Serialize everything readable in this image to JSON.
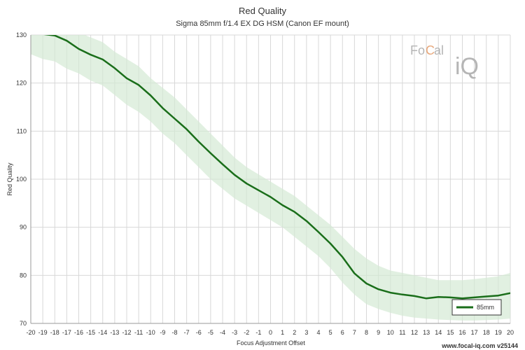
{
  "chart_data": {
    "type": "line",
    "title": "Red Quality",
    "subtitle": "Sigma 85mm f/1.4 EX DG HSM (Canon EF mount)",
    "xlabel": "Focus Adjustment Offset",
    "ylabel": "Red Quality",
    "xlim": [
      -20,
      20
    ],
    "ylim": [
      70,
      130
    ],
    "xticks": [
      -20,
      -19,
      -18,
      -17,
      -16,
      -15,
      -14,
      -13,
      -12,
      -11,
      -10,
      -9,
      -8,
      -7,
      -6,
      -5,
      -4,
      -3,
      -2,
      -1,
      0,
      1,
      2,
      3,
      4,
      5,
      6,
      7,
      8,
      9,
      10,
      11,
      12,
      13,
      14,
      15,
      16,
      17,
      18,
      19,
      20
    ],
    "yticks": [
      70,
      80,
      90,
      100,
      110,
      120,
      130
    ],
    "grid": true,
    "legend_position": "bottom-right",
    "x": [
      -20,
      -19,
      -18,
      -17,
      -16,
      -15,
      -14,
      -13,
      -12,
      -11,
      -10,
      -9,
      -8,
      -7,
      -6,
      -5,
      -4,
      -3,
      -2,
      -1,
      0,
      1,
      2,
      3,
      4,
      5,
      6,
      7,
      8,
      9,
      10,
      11,
      12,
      13,
      14,
      15,
      16,
      17,
      18,
      19,
      20
    ],
    "series": [
      {
        "name": "85mm",
        "color": "#1a6e1a",
        "band_color": "#d4ead4",
        "values": [
          130.5,
          130.2,
          129.9,
          128.8,
          127.1,
          125.9,
          124.9,
          123.1,
          121.0,
          119.6,
          117.4,
          114.8,
          112.6,
          110.4,
          107.8,
          105.4,
          103.1,
          100.9,
          99.1,
          97.7,
          96.3,
          94.6,
          93.2,
          91.3,
          89.0,
          86.6,
          83.8,
          80.4,
          78.3,
          77.1,
          76.4,
          76.0,
          75.7,
          75.2,
          75.5,
          75.4,
          75.2,
          75.4,
          75.6,
          75.8,
          76.3
        ],
        "band_upper": [
          134.0,
          133.0,
          132.0,
          131.0,
          130.5,
          129.5,
          128.5,
          126.5,
          125.0,
          123.5,
          121.0,
          119.0,
          117.0,
          114.5,
          112.0,
          109.5,
          107.0,
          104.5,
          102.5,
          101.0,
          99.5,
          98.0,
          96.5,
          94.5,
          92.5,
          90.5,
          88.0,
          85.5,
          83.5,
          82.0,
          81.0,
          80.5,
          80.0,
          79.5,
          79.0,
          79.0,
          79.0,
          79.2,
          79.5,
          79.8,
          80.5
        ],
        "band_lower": [
          126.0,
          125.0,
          124.5,
          123.0,
          122.0,
          120.5,
          119.5,
          117.5,
          115.5,
          114.0,
          112.0,
          109.5,
          107.5,
          105.0,
          102.5,
          100.0,
          98.0,
          96.0,
          94.5,
          93.0,
          91.5,
          90.0,
          88.0,
          86.0,
          84.0,
          81.5,
          78.5,
          76.0,
          74.0,
          73.0,
          72.2,
          71.6,
          71.2,
          71.0,
          70.8,
          70.7,
          70.6,
          70.6,
          70.7,
          70.8,
          71.0
        ]
      }
    ]
  },
  "watermark": {
    "fo": "Fo",
    "c": "C",
    "al": "al",
    "iq": "iQ"
  },
  "footer": "www.focal-iq.com  v25144"
}
